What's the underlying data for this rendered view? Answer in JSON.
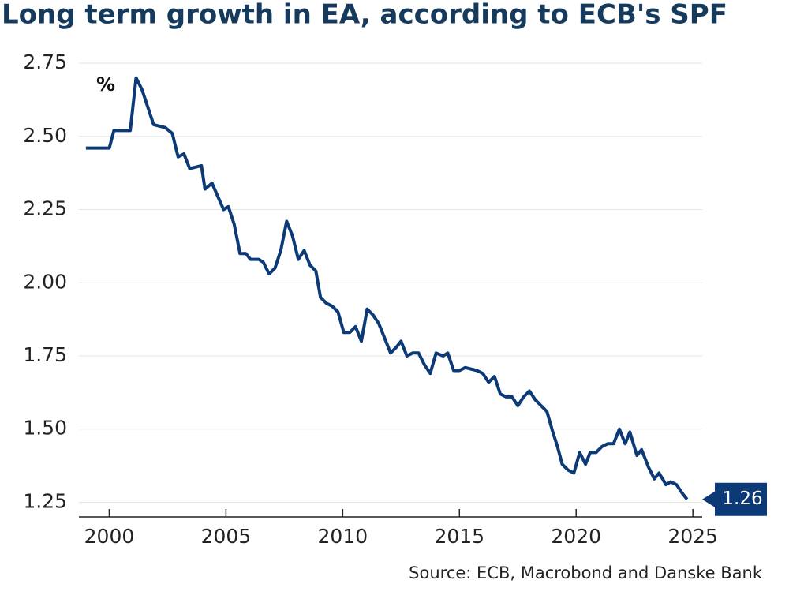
{
  "chart_data": {
    "type": "line",
    "title": "Long term growth in EA, according to ECB's SPF",
    "y_label": "%",
    "source": "Source: ECB, Macrobond and Danske Bank",
    "x": [
      1999.0,
      2000.0,
      2000.2,
      2000.9,
      2001.15,
      2001.4,
      2001.9,
      2002.4,
      2002.7,
      2002.95,
      2003.2,
      2003.45,
      2003.95,
      2004.1,
      2004.4,
      2004.9,
      2005.1,
      2005.35,
      2005.6,
      2005.85,
      2006.05,
      2006.4,
      2006.6,
      2006.85,
      2007.1,
      2007.35,
      2007.6,
      2007.85,
      2008.1,
      2008.35,
      2008.6,
      2008.85,
      2009.05,
      2009.3,
      2009.55,
      2009.8,
      2010.05,
      2010.3,
      2010.55,
      2010.8,
      2011.05,
      2011.3,
      2011.55,
      2011.8,
      2012.05,
      2012.3,
      2012.5,
      2012.75,
      2013.0,
      2013.25,
      2013.5,
      2013.75,
      2014.0,
      2014.3,
      2014.5,
      2014.75,
      2015.0,
      2015.25,
      2015.75,
      2016.0,
      2016.25,
      2016.5,
      2016.75,
      2017.0,
      2017.25,
      2017.5,
      2017.75,
      2018.0,
      2018.25,
      2018.5,
      2018.75,
      2019.0,
      2019.2,
      2019.4,
      2019.65,
      2019.9,
      2020.15,
      2020.4,
      2020.6,
      2020.85,
      2021.1,
      2021.35,
      2021.6,
      2021.85,
      2022.1,
      2022.3,
      2022.6,
      2022.8,
      2023.1,
      2023.35,
      2023.55,
      2023.85,
      2024.05,
      2024.3,
      2024.55,
      2024.75
    ],
    "series": [
      {
        "name": "Long term growth",
        "color": "#0c3a77",
        "values": [
          2.46,
          2.46,
          2.52,
          2.52,
          2.7,
          2.66,
          2.54,
          2.53,
          2.51,
          2.43,
          2.44,
          2.39,
          2.4,
          2.32,
          2.34,
          2.25,
          2.26,
          2.2,
          2.1,
          2.1,
          2.08,
          2.08,
          2.07,
          2.03,
          2.05,
          2.11,
          2.21,
          2.16,
          2.08,
          2.11,
          2.06,
          2.04,
          1.95,
          1.93,
          1.92,
          1.9,
          1.83,
          1.83,
          1.85,
          1.8,
          1.91,
          1.89,
          1.86,
          1.81,
          1.76,
          1.78,
          1.8,
          1.75,
          1.76,
          1.76,
          1.72,
          1.69,
          1.76,
          1.75,
          1.76,
          1.7,
          1.7,
          1.71,
          1.7,
          1.69,
          1.66,
          1.68,
          1.62,
          1.61,
          1.61,
          1.58,
          1.61,
          1.63,
          1.6,
          1.58,
          1.56,
          1.49,
          1.44,
          1.38,
          1.36,
          1.35,
          1.42,
          1.38,
          1.42,
          1.42,
          1.44,
          1.45,
          1.45,
          1.5,
          1.45,
          1.49,
          1.41,
          1.43,
          1.37,
          1.33,
          1.35,
          1.31,
          1.32,
          1.31,
          1.28,
          1.26
        ]
      }
    ],
    "xlim": [
      1998.7,
      2025.4
    ],
    "xticks": [
      2000,
      2005,
      2010,
      2015,
      2020,
      2025
    ],
    "ylim": [
      1.2,
      2.8
    ],
    "yticks": [
      1.25,
      {
        "value": 1.5,
        "label": "1.50"
      },
      1.75,
      {
        "value": 2.0,
        "label": "2.00"
      },
      2.25,
      {
        "value": 2.5,
        "label": "2.50"
      },
      2.75
    ],
    "grid": true
  }
}
